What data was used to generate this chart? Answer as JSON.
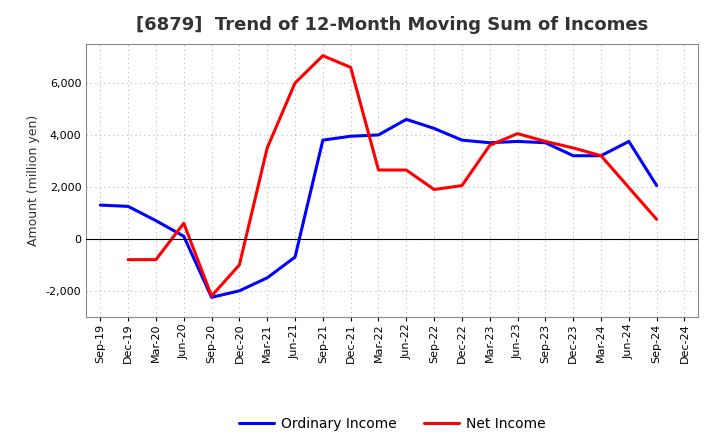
{
  "title": "[6879]  Trend of 12-Month Moving Sum of Incomes",
  "ylabel": "Amount (million yen)",
  "xlabels": [
    "Sep-19",
    "Dec-19",
    "Mar-20",
    "Jun-20",
    "Sep-20",
    "Dec-20",
    "Mar-21",
    "Jun-21",
    "Sep-21",
    "Dec-21",
    "Mar-22",
    "Jun-22",
    "Sep-22",
    "Dec-22",
    "Mar-23",
    "Jun-23",
    "Sep-23",
    "Dec-23",
    "Mar-24",
    "Jun-24",
    "Sep-24",
    "Dec-24"
  ],
  "ordinary_income": [
    1300,
    1250,
    700,
    100,
    -2250,
    -2000,
    -1500,
    -700,
    3800,
    3950,
    4000,
    4600,
    4250,
    3800,
    3700,
    3750,
    3700,
    3200,
    3200,
    3750,
    2050,
    null
  ],
  "net_income": [
    null,
    -800,
    -800,
    600,
    -2200,
    -1000,
    3500,
    6000,
    7050,
    6600,
    2650,
    2650,
    1900,
    2050,
    3600,
    4050,
    3750,
    3500,
    3200,
    null,
    750,
    null
  ],
  "ordinary_income_color": "#0000ff",
  "net_income_color": "#ff0000",
  "ylim": [
    -3000,
    7500
  ],
  "yticks": [
    -2000,
    0,
    2000,
    4000,
    6000
  ],
  "background_color": "#ffffff",
  "plot_bg_color": "#ffffff",
  "grid_color": "#bbbbbb",
  "title_color": "#333333",
  "title_fontsize": 13,
  "axis_fontsize": 9,
  "legend_fontsize": 10,
  "tick_fontsize": 8,
  "line_width": 2.2
}
